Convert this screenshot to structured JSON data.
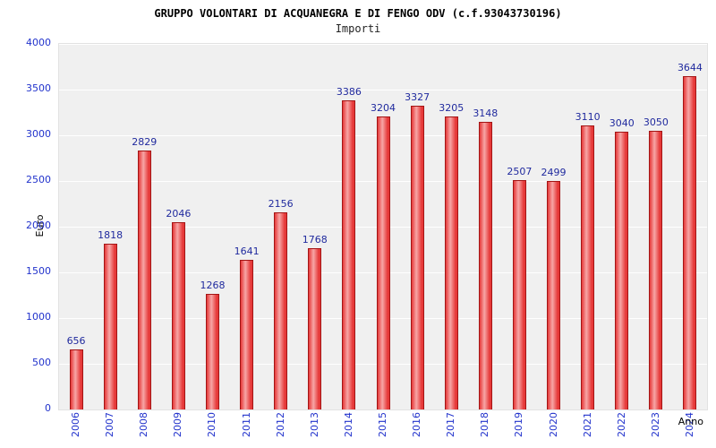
{
  "chart_data": {
    "type": "bar",
    "title": "GRUPPO VOLONTARI DI ACQUANEGRA E DI FENGO ODV (c.f.93043730196)",
    "subtitle": "Importi",
    "xlabel": "Anno",
    "ylabel": "Euro",
    "categories": [
      "2006",
      "2007",
      "2008",
      "2009",
      "2010",
      "2011",
      "2012",
      "2013",
      "2014",
      "2015",
      "2016",
      "2017",
      "2018",
      "2019",
      "2020",
      "2021",
      "2022",
      "2023",
      "2024"
    ],
    "values": [
      656,
      1818,
      2829,
      2046,
      1268,
      1641,
      2156,
      1768,
      3386,
      3204,
      3327,
      3205,
      3148,
      2507,
      2499,
      3110,
      3040,
      3050,
      3644
    ],
    "ylim": [
      0,
      4000
    ],
    "ytick_step": 500,
    "grid": true,
    "legend_position": "none",
    "colors": {
      "bar_fill": "#e63939",
      "bar_fill_light": "#f7a6a6",
      "bar_border": "#a31515",
      "tick_label": "#2233cc",
      "value_label": "#202a9e",
      "plot_bg": "#f0f0f0",
      "grid_line": "#ffffff"
    }
  }
}
